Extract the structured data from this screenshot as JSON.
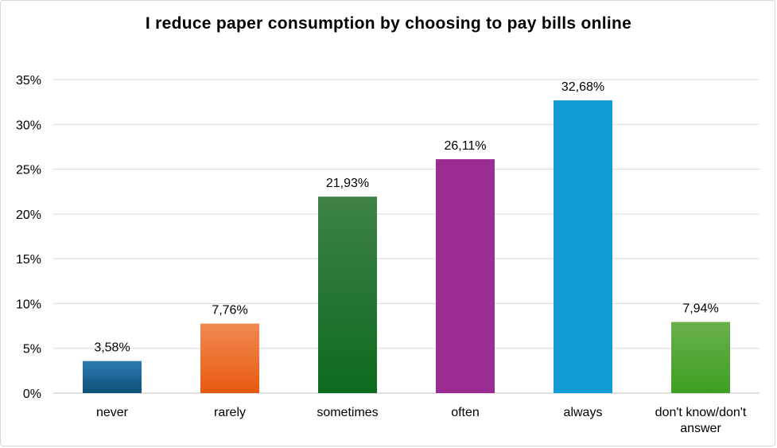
{
  "chart_data": {
    "type": "bar",
    "title": "I reduce paper consumption by choosing to pay bills online",
    "categories": [
      "never",
      "rarely",
      "sometimes",
      "often",
      "always",
      "don't know/don't answer"
    ],
    "values": [
      3.58,
      7.76,
      21.93,
      26.11,
      32.68,
      7.94
    ],
    "data_labels": [
      "3,58%",
      "7,76%",
      "21,93%",
      "26,11%",
      "32,68%",
      "7,94%"
    ],
    "y_ticks": [
      "0%",
      "5%",
      "10%",
      "15%",
      "20%",
      "25%",
      "30%",
      "35%"
    ],
    "ylim": [
      0,
      35
    ],
    "grid": true,
    "legend": "none",
    "colors": [
      {
        "top": "#2f7cb0",
        "bottom": "#0d4f7a"
      },
      {
        "top": "#f08a50",
        "bottom": "#e85a12"
      },
      {
        "top": "#3f8247",
        "bottom": "#0d6a1f"
      },
      {
        "top": "#9b2c92",
        "bottom": "#9b2c92"
      },
      {
        "top": "#139bd6",
        "bottom": "#139bd6"
      },
      {
        "top": "#6ab04c",
        "bottom": "#3e9e23"
      }
    ]
  }
}
